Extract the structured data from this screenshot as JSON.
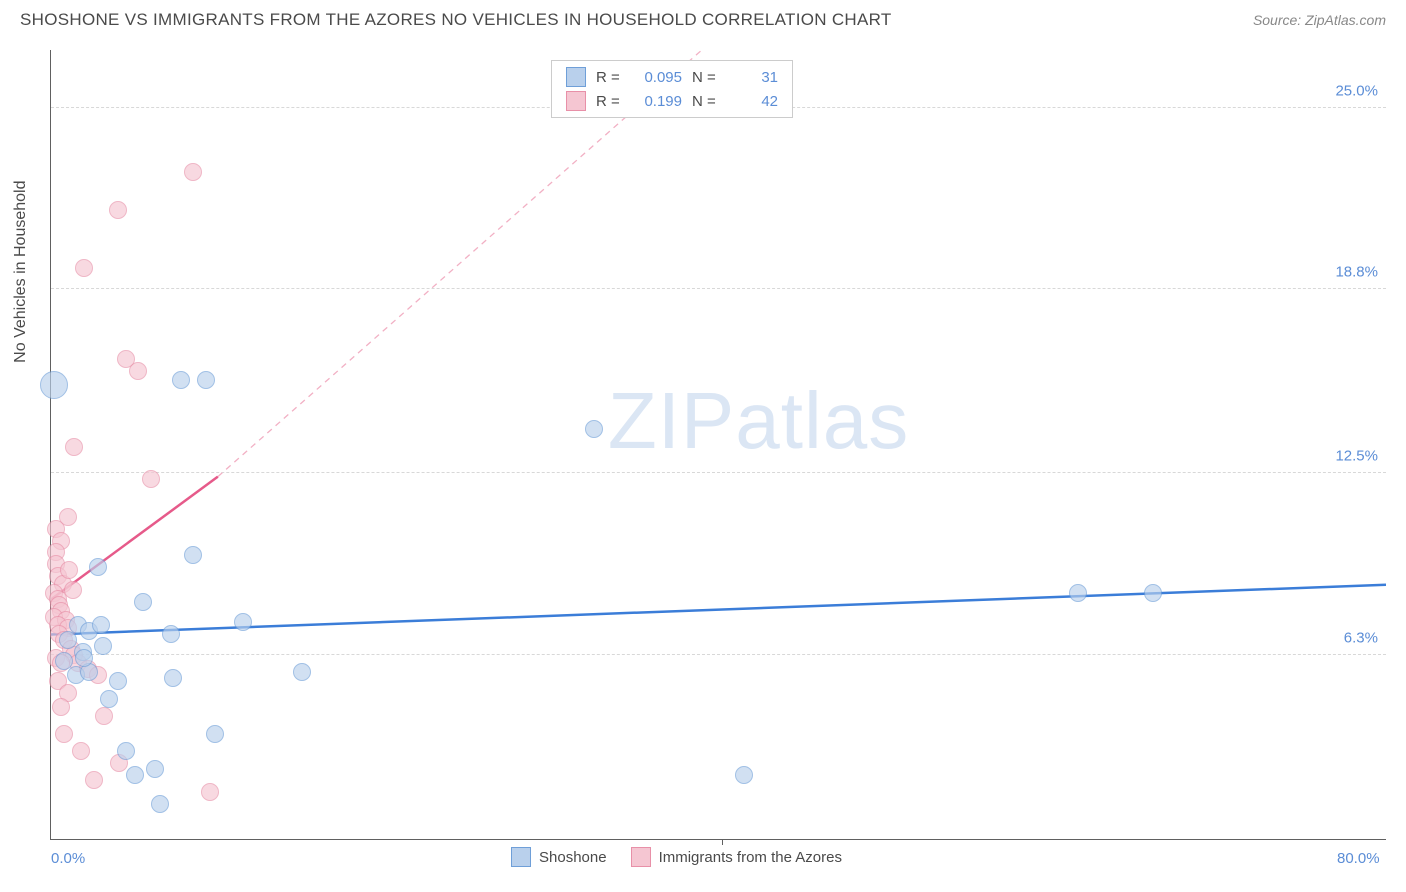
{
  "header": {
    "title": "SHOSHONE VS IMMIGRANTS FROM THE AZORES NO VEHICLES IN HOUSEHOLD CORRELATION CHART",
    "source": "Source: ZipAtlas.com"
  },
  "chart": {
    "type": "scatter",
    "ylabel": "No Vehicles in Household",
    "watermark": {
      "part1": "ZIP",
      "part2": "atlas"
    },
    "xlim": [
      0,
      80
    ],
    "ylim": [
      0,
      27
    ],
    "ytick_labels": [
      "6.3%",
      "12.5%",
      "18.8%",
      "25.0%"
    ],
    "ytick_values": [
      6.3,
      12.5,
      18.8,
      25.0
    ],
    "xtick_labels": [
      "0.0%",
      "80.0%"
    ],
    "xtick_values": [
      0,
      80
    ],
    "x_inner_tick": 40.2,
    "background_color": "#ffffff",
    "grid_color": "#d8d8d8",
    "axis_color": "#606060",
    "series": {
      "shoshone": {
        "label": "Shoshone",
        "fill": "#b9d0ec",
        "stroke": "#6f9fd8",
        "fill_opacity": 0.65,
        "r_label": "R =",
        "r_value": "0.095",
        "n_label": "N =",
        "n_value": "31",
        "trend": {
          "x1": 0,
          "y1": 7.0,
          "x2": 80,
          "y2": 8.7,
          "color": "#3b7dd8",
          "width": 2.5,
          "dash": "none"
        },
        "points": [
          {
            "x": 0.2,
            "y": 15.5,
            "r": 14
          },
          {
            "x": 7.8,
            "y": 15.7,
            "r": 9
          },
          {
            "x": 9.3,
            "y": 15.7,
            "r": 9
          },
          {
            "x": 32.5,
            "y": 14.0,
            "r": 9
          },
          {
            "x": 2.8,
            "y": 9.3,
            "r": 9
          },
          {
            "x": 8.5,
            "y": 9.7,
            "r": 9
          },
          {
            "x": 5.5,
            "y": 8.1,
            "r": 9
          },
          {
            "x": 1.6,
            "y": 7.3,
            "r": 9
          },
          {
            "x": 2.3,
            "y": 7.1,
            "r": 9
          },
          {
            "x": 7.2,
            "y": 7.0,
            "r": 9
          },
          {
            "x": 11.5,
            "y": 7.4,
            "r": 9
          },
          {
            "x": 61.5,
            "y": 8.4,
            "r": 9
          },
          {
            "x": 66.0,
            "y": 8.4,
            "r": 9
          },
          {
            "x": 1.0,
            "y": 6.8,
            "r": 9
          },
          {
            "x": 1.9,
            "y": 6.4,
            "r": 9
          },
          {
            "x": 3.1,
            "y": 6.6,
            "r": 9
          },
          {
            "x": 1.5,
            "y": 5.6,
            "r": 9
          },
          {
            "x": 2.3,
            "y": 5.7,
            "r": 9
          },
          {
            "x": 4.0,
            "y": 5.4,
            "r": 9
          },
          {
            "x": 15.0,
            "y": 5.7,
            "r": 9
          },
          {
            "x": 7.3,
            "y": 5.5,
            "r": 9
          },
          {
            "x": 3.5,
            "y": 4.8,
            "r": 9
          },
          {
            "x": 4.5,
            "y": 3.0,
            "r": 9
          },
          {
            "x": 9.8,
            "y": 3.6,
            "r": 9
          },
          {
            "x": 5.0,
            "y": 2.2,
            "r": 9
          },
          {
            "x": 6.2,
            "y": 2.4,
            "r": 9
          },
          {
            "x": 41.5,
            "y": 2.2,
            "r": 9
          },
          {
            "x": 6.5,
            "y": 1.2,
            "r": 9
          },
          {
            "x": 2.0,
            "y": 6.2,
            "r": 9
          },
          {
            "x": 3.0,
            "y": 7.3,
            "r": 9
          },
          {
            "x": 0.8,
            "y": 6.1,
            "r": 9
          }
        ]
      },
      "azores": {
        "label": "Immigrants from the Azores",
        "fill": "#f5c6d2",
        "stroke": "#e890a8",
        "fill_opacity": 0.65,
        "r_label": "R =",
        "r_value": "0.199",
        "n_label": "N =",
        "n_value": "42",
        "trend_solid": {
          "x1": 0,
          "y1": 8.2,
          "x2": 10,
          "y2": 12.4,
          "color": "#e65a8a",
          "width": 2.5
        },
        "trend_dash": {
          "x1": 10,
          "y1": 12.4,
          "x2": 39,
          "y2": 27.0,
          "color": "#f2b0c4",
          "width": 1.3,
          "dash": "6 5"
        },
        "points": [
          {
            "x": 8.5,
            "y": 22.8,
            "r": 9
          },
          {
            "x": 4.0,
            "y": 21.5,
            "r": 9
          },
          {
            "x": 2.0,
            "y": 19.5,
            "r": 9
          },
          {
            "x": 4.5,
            "y": 16.4,
            "r": 9
          },
          {
            "x": 5.2,
            "y": 16.0,
            "r": 9
          },
          {
            "x": 1.4,
            "y": 13.4,
            "r": 9
          },
          {
            "x": 6.0,
            "y": 12.3,
            "r": 9
          },
          {
            "x": 1.0,
            "y": 11.0,
            "r": 9
          },
          {
            "x": 0.3,
            "y": 10.6,
            "r": 9
          },
          {
            "x": 0.6,
            "y": 10.2,
            "r": 9
          },
          {
            "x": 0.3,
            "y": 9.8,
            "r": 9
          },
          {
            "x": 0.3,
            "y": 9.4,
            "r": 9
          },
          {
            "x": 0.4,
            "y": 9.0,
            "r": 9
          },
          {
            "x": 0.7,
            "y": 8.7,
            "r": 9
          },
          {
            "x": 0.2,
            "y": 8.4,
            "r": 9
          },
          {
            "x": 0.4,
            "y": 8.2,
            "r": 9
          },
          {
            "x": 0.5,
            "y": 8.0,
            "r": 9
          },
          {
            "x": 0.6,
            "y": 7.8,
            "r": 9
          },
          {
            "x": 0.2,
            "y": 7.6,
            "r": 9
          },
          {
            "x": 0.9,
            "y": 7.5,
            "r": 9
          },
          {
            "x": 0.4,
            "y": 7.3,
            "r": 9
          },
          {
            "x": 1.0,
            "y": 7.2,
            "r": 9
          },
          {
            "x": 0.5,
            "y": 7.0,
            "r": 9
          },
          {
            "x": 0.8,
            "y": 6.8,
            "r": 9
          },
          {
            "x": 1.2,
            "y": 6.5,
            "r": 9
          },
          {
            "x": 0.3,
            "y": 6.2,
            "r": 9
          },
          {
            "x": 1.4,
            "y": 6.3,
            "r": 9
          },
          {
            "x": 0.6,
            "y": 6.0,
            "r": 9
          },
          {
            "x": 1.6,
            "y": 6.0,
            "r": 9
          },
          {
            "x": 2.2,
            "y": 5.8,
            "r": 9
          },
          {
            "x": 0.4,
            "y": 5.4,
            "r": 9
          },
          {
            "x": 2.8,
            "y": 5.6,
            "r": 9
          },
          {
            "x": 1.0,
            "y": 5.0,
            "r": 9
          },
          {
            "x": 3.2,
            "y": 4.2,
            "r": 9
          },
          {
            "x": 0.8,
            "y": 3.6,
            "r": 9
          },
          {
            "x": 1.8,
            "y": 3.0,
            "r": 9
          },
          {
            "x": 4.1,
            "y": 2.6,
            "r": 9
          },
          {
            "x": 2.6,
            "y": 2.0,
            "r": 9
          },
          {
            "x": 9.5,
            "y": 1.6,
            "r": 9
          },
          {
            "x": 0.6,
            "y": 4.5,
            "r": 9
          },
          {
            "x": 1.3,
            "y": 8.5,
            "r": 9
          },
          {
            "x": 1.1,
            "y": 9.2,
            "r": 9
          }
        ]
      }
    }
  }
}
